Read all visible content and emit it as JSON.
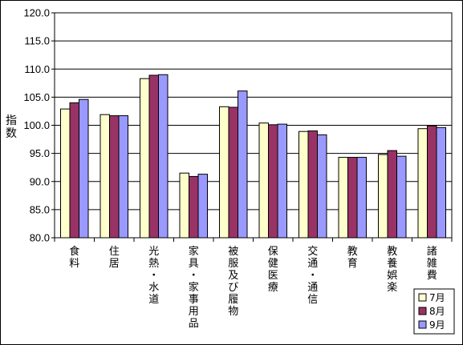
{
  "chart_data": {
    "type": "bar",
    "ylabel": "指数",
    "ylim": [
      80.0,
      120.0
    ],
    "yticks": [
      "120.0",
      "115.0",
      "110.0",
      "105.0",
      "100.0",
      "95.0",
      "90.0",
      "85.0",
      "80.0"
    ],
    "grid": true,
    "legend_position": "bottom-right",
    "categories": [
      "食料",
      "住居",
      "光熱・水道",
      "家具・家事用品",
      "被服及び履物",
      "保健医療",
      "交通・通信",
      "教育",
      "教養娯楽",
      "諸雑費"
    ],
    "series": [
      {
        "name": "7月",
        "color": "#ffffcc",
        "values": [
          102.9,
          101.9,
          108.3,
          91.5,
          103.3,
          100.4,
          98.9,
          94.3,
          94.8,
          99.4
        ]
      },
      {
        "name": "8月",
        "color": "#993366",
        "values": [
          104.0,
          101.7,
          108.9,
          90.9,
          103.2,
          100.1,
          99.0,
          94.3,
          95.5,
          99.9
        ]
      },
      {
        "name": "9月",
        "color": "#9999ff",
        "values": [
          104.6,
          101.7,
          109.0,
          91.3,
          106.1,
          100.2,
          98.3,
          94.3,
          94.5,
          99.6
        ]
      }
    ]
  }
}
